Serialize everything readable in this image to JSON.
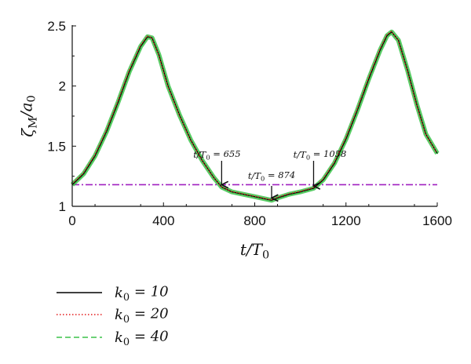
{
  "chart_data": {
    "type": "line",
    "ylabel": "ζ_M / a_0",
    "xlabel": "t / T_0",
    "xlim": [
      0,
      1600
    ],
    "ylim": [
      1,
      2.5
    ],
    "xticks": [
      "0",
      "400",
      "800",
      "1200",
      "1600"
    ],
    "yticks": [
      "1",
      "1.5",
      "2",
      "2.5"
    ],
    "x": [
      0,
      50,
      100,
      150,
      200,
      250,
      300,
      330,
      350,
      380,
      420,
      470,
      520,
      570,
      620,
      655,
      700,
      750,
      800,
      850,
      874,
      900,
      950,
      1000,
      1058,
      1100,
      1150,
      1200,
      1250,
      1300,
      1350,
      1380,
      1400,
      1430,
      1470,
      1510,
      1550,
      1600
    ],
    "series": [
      {
        "name": "k_0 = 10",
        "color": "#000000",
        "style": "solid",
        "values": [
          1.18,
          1.27,
          1.42,
          1.62,
          1.86,
          2.12,
          2.33,
          2.41,
          2.4,
          2.26,
          2.0,
          1.76,
          1.55,
          1.38,
          1.24,
          1.16,
          1.12,
          1.1,
          1.08,
          1.06,
          1.05,
          1.07,
          1.1,
          1.12,
          1.15,
          1.22,
          1.36,
          1.56,
          1.8,
          2.06,
          2.3,
          2.42,
          2.45,
          2.38,
          2.13,
          1.85,
          1.6,
          1.44
        ]
      },
      {
        "name": "k_0 = 20",
        "color": "#e41a1c",
        "style": "dotted",
        "values": [
          1.18,
          1.27,
          1.42,
          1.62,
          1.86,
          2.12,
          2.33,
          2.41,
          2.4,
          2.26,
          2.0,
          1.76,
          1.55,
          1.38,
          1.24,
          1.16,
          1.12,
          1.1,
          1.08,
          1.06,
          1.05,
          1.07,
          1.1,
          1.12,
          1.15,
          1.22,
          1.36,
          1.56,
          1.8,
          2.06,
          2.3,
          2.42,
          2.45,
          2.38,
          2.13,
          1.85,
          1.6,
          1.44
        ]
      },
      {
        "name": "k_0 = 40",
        "color": "#3cc24a",
        "style": "dashed",
        "values": [
          1.18,
          1.27,
          1.42,
          1.62,
          1.86,
          2.12,
          2.33,
          2.41,
          2.4,
          2.26,
          2.0,
          1.76,
          1.55,
          1.38,
          1.24,
          1.16,
          1.12,
          1.1,
          1.08,
          1.06,
          1.05,
          1.07,
          1.1,
          1.12,
          1.15,
          1.22,
          1.36,
          1.56,
          1.8,
          2.06,
          2.3,
          2.42,
          2.45,
          2.38,
          2.13,
          1.85,
          1.6,
          1.44
        ]
      }
    ],
    "reference_line": {
      "y": 1.18,
      "color": "#a020c0",
      "style": "dash-dot"
    },
    "annotations": [
      {
        "text": "t/T_0 = 655",
        "x": 655,
        "y": 1.16
      },
      {
        "text": "t/T_0 = 874",
        "x": 874,
        "y": 1.05
      },
      {
        "text": "t/T_0 = 1058",
        "x": 1058,
        "y": 1.15
      }
    ],
    "legend_position": "bottom-left",
    "grid": false
  }
}
